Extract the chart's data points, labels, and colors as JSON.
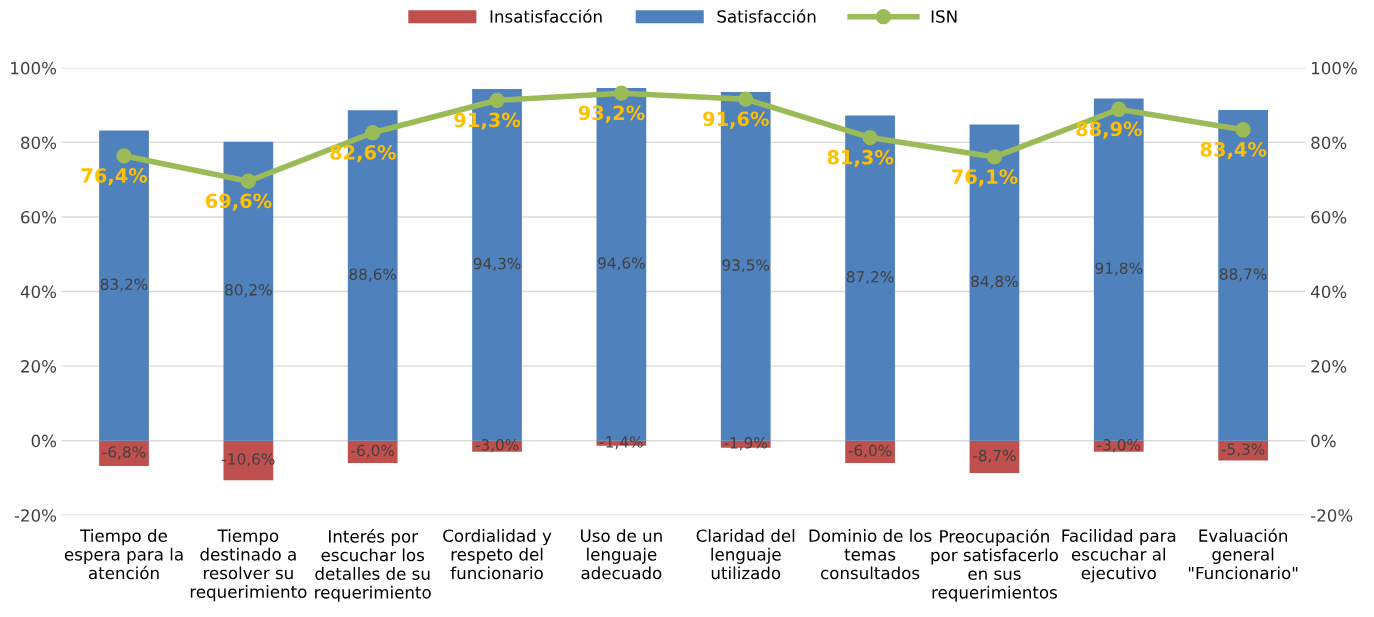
{
  "chart_data": {
    "type": "bar",
    "stacked": true,
    "categories": [
      "Tiempo de\nespera para la\natención",
      "Tiempo\ndestinado a\nresolver su\nrequerimiento",
      "Interés por\nescuchar los\ndetalles de su\nrequerimiento",
      "Cordialidad y\nrespeto del\nfuncionario",
      "Uso de un\nlenguaje\nadecuado",
      "Claridad del\nlenguaje\nutilizado",
      "Dominio de los\ntemas\nconsultados",
      "Preocupación\npor satisfacerlo\nen sus\nrequerimientos",
      "Facilidad para\nescuchar al\nejecutivo",
      "Evaluación\ngeneral\n\"Funcionario\""
    ],
    "series": [
      {
        "name": "Insatisfacción",
        "color": "#c0504d",
        "values": [
          -6.8,
          -10.6,
          -6.0,
          -3.0,
          -1.4,
          -1.9,
          -6.0,
          -8.7,
          -3.0,
          -5.3
        ],
        "value_labels": [
          "-6,8%",
          "-10,6%",
          "-6,0%",
          "-3,0%",
          "-1,4%",
          "-1,9%",
          "-6,0%",
          "-8,7%",
          "-3,0%",
          "-5,3%"
        ]
      },
      {
        "name": "Satisfacción",
        "color": "#4f81bd",
        "values": [
          83.2,
          80.2,
          88.6,
          94.3,
          94.6,
          93.5,
          87.2,
          84.8,
          91.8,
          88.7
        ],
        "value_labels": [
          "83,2%",
          "80,2%",
          "88,6%",
          "94,3%",
          "94,6%",
          "93,5%",
          "87,2%",
          "84,8%",
          "91,8%",
          "88,7%"
        ]
      },
      {
        "name": "ISN",
        "type": "line",
        "axis": "y2",
        "color": "#9bbb59",
        "marker": "circle",
        "values": [
          76.4,
          69.6,
          82.6,
          91.3,
          93.2,
          91.6,
          81.3,
          76.1,
          88.9,
          83.4
        ],
        "value_labels": [
          "76,4%",
          "69,6%",
          "82,6%",
          "91,3%",
          "93,2%",
          "91,6%",
          "81,3%",
          "76,1%",
          "88,9%",
          "83,4%"
        ]
      }
    ],
    "ylim": [
      -20,
      100
    ],
    "yticks": [
      {
        "value": -20,
        "label": "-20%"
      },
      {
        "value": 0,
        "label": "0%"
      },
      {
        "value": 20,
        "label": "20%"
      },
      {
        "value": 40,
        "label": "40%"
      },
      {
        "value": 60,
        "label": "60%"
      },
      {
        "value": 80,
        "label": "80%"
      },
      {
        "value": 100,
        "label": "100%"
      }
    ],
    "y2lim": [
      -20,
      100
    ],
    "y2ticks": [
      {
        "value": -20,
        "label": "-20%"
      },
      {
        "value": 0,
        "label": "0%"
      },
      {
        "value": 20,
        "label": "20%"
      },
      {
        "value": 40,
        "label": "40%"
      },
      {
        "value": 60,
        "label": "60%"
      },
      {
        "value": 80,
        "label": "80%"
      },
      {
        "value": 100,
        "label": "100%"
      }
    ],
    "grid": "y",
    "legend": "top"
  }
}
